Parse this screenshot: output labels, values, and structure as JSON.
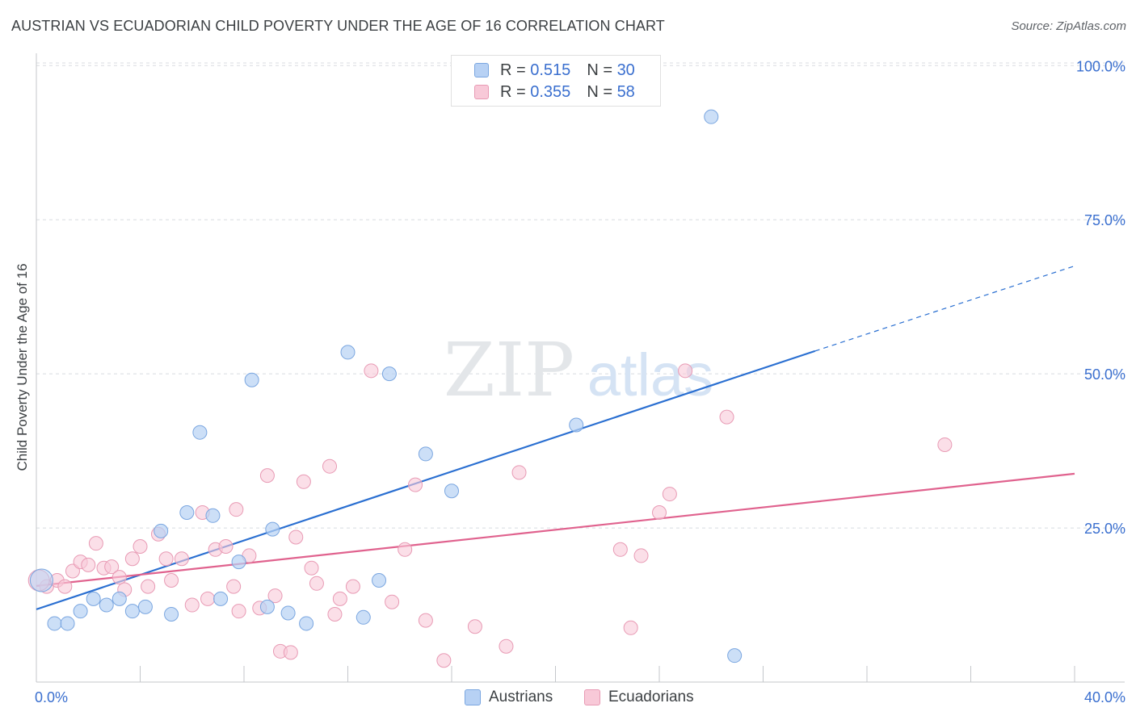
{
  "title": "AUSTRIAN VS ECUADORIAN CHILD POVERTY UNDER THE AGE OF 16 CORRELATION CHART",
  "source": "Source: ZipAtlas.com",
  "watermark": {
    "zip": "ZIP",
    "atlas": "atlas"
  },
  "legend": {
    "austrians": {
      "r_label": "R =",
      "r_value": "0.515",
      "n_label": "N =",
      "n_value": "30"
    },
    "ecuadorians": {
      "r_label": "R =",
      "r_value": "0.355",
      "n_label": "N =",
      "n_value": "58"
    }
  },
  "bottom_legend": {
    "austrians": "Austrians",
    "ecuadorians": "Ecuadorians"
  },
  "colors": {
    "austrians_fill": "#b7d1f4",
    "austrians_stroke": "#7aa6e0",
    "austrians_line": "#2a6fd1",
    "ecuadorians_fill": "#f8c9d8",
    "ecuadorians_stroke": "#e89ab4",
    "ecuadorians_line": "#e0628e",
    "axis_tick": "#3a6fcf",
    "grid": "#d8dce0"
  },
  "chart_data": {
    "type": "scatter",
    "title": "AUSTRIAN VS ECUADORIAN CHILD POVERTY UNDER THE AGE OF 16 CORRELATION CHART",
    "xlabel": "",
    "ylabel": "Child Poverty Under the Age of 16",
    "xlim": [
      0,
      40
    ],
    "ylim": [
      0,
      102
    ],
    "x_tick_labels": [
      "0.0%",
      "40.0%"
    ],
    "y_ticks": [
      25,
      50,
      75,
      100
    ],
    "y_tick_labels": [
      "25.0%",
      "50.0%",
      "75.0%",
      "100.0%"
    ],
    "grid": true,
    "legend_position": "top-center",
    "series": [
      {
        "name": "Austrians",
        "R": 0.515,
        "N": 30,
        "points": [
          [
            0.2,
            16.5
          ],
          [
            0.7,
            9.5
          ],
          [
            1.2,
            9.5
          ],
          [
            1.7,
            11.5
          ],
          [
            2.2,
            13.5
          ],
          [
            2.7,
            12.5
          ],
          [
            3.2,
            13.5
          ],
          [
            3.7,
            11.5
          ],
          [
            4.2,
            12.2
          ],
          [
            4.8,
            24.5
          ],
          [
            5.2,
            11.0
          ],
          [
            5.8,
            27.5
          ],
          [
            6.3,
            40.5
          ],
          [
            6.8,
            27.0
          ],
          [
            7.1,
            13.5
          ],
          [
            7.8,
            19.5
          ],
          [
            8.3,
            49.0
          ],
          [
            9.1,
            24.8
          ],
          [
            8.9,
            12.2
          ],
          [
            9.7,
            11.2
          ],
          [
            10.4,
            9.5
          ],
          [
            12.0,
            53.5
          ],
          [
            12.6,
            10.5
          ],
          [
            13.2,
            16.5
          ],
          [
            13.6,
            50.0
          ],
          [
            15.0,
            37.0
          ],
          [
            16.0,
            31.0
          ],
          [
            20.8,
            41.7
          ],
          [
            26.0,
            91.7
          ],
          [
            26.9,
            4.3
          ]
        ],
        "trend": {
          "x_start": 0,
          "y_start": 11.8,
          "x_end": 30.0,
          "y_end": 53.7,
          "dashed_to_x": 40.0,
          "dashed_to_y": 67.5
        }
      },
      {
        "name": "Ecuadorians",
        "R": 0.355,
        "N": 58,
        "points": [
          [
            0.4,
            15.5
          ],
          [
            0.8,
            16.5
          ],
          [
            1.1,
            15.5
          ],
          [
            1.4,
            18.0
          ],
          [
            1.7,
            19.5
          ],
          [
            2.0,
            19.0
          ],
          [
            2.3,
            22.5
          ],
          [
            2.6,
            18.5
          ],
          [
            2.9,
            18.7
          ],
          [
            3.2,
            17.0
          ],
          [
            3.4,
            15.0
          ],
          [
            3.7,
            20.0
          ],
          [
            4.0,
            22.0
          ],
          [
            4.3,
            15.5
          ],
          [
            4.7,
            24.0
          ],
          [
            5.0,
            20.0
          ],
          [
            5.2,
            16.5
          ],
          [
            5.6,
            20.0
          ],
          [
            6.0,
            12.5
          ],
          [
            6.4,
            27.5
          ],
          [
            6.6,
            13.5
          ],
          [
            6.9,
            21.5
          ],
          [
            7.3,
            22.0
          ],
          [
            7.6,
            15.5
          ],
          [
            7.7,
            28.0
          ],
          [
            7.8,
            11.5
          ],
          [
            8.2,
            20.5
          ],
          [
            8.6,
            12.0
          ],
          [
            8.9,
            33.5
          ],
          [
            9.2,
            14.0
          ],
          [
            9.4,
            5.0
          ],
          [
            9.8,
            4.8
          ],
          [
            10.0,
            23.5
          ],
          [
            10.3,
            32.5
          ],
          [
            10.6,
            18.5
          ],
          [
            10.8,
            16.0
          ],
          [
            11.3,
            35.0
          ],
          [
            11.5,
            11.0
          ],
          [
            11.7,
            13.5
          ],
          [
            12.2,
            15.5
          ],
          [
            12.9,
            50.5
          ],
          [
            13.7,
            13.0
          ],
          [
            14.2,
            21.5
          ],
          [
            14.6,
            32.0
          ],
          [
            15.0,
            10.0
          ],
          [
            15.7,
            3.5
          ],
          [
            16.9,
            9.0
          ],
          [
            18.1,
            5.8
          ],
          [
            18.6,
            34.0
          ],
          [
            22.5,
            21.5
          ],
          [
            22.9,
            8.8
          ],
          [
            23.3,
            20.5
          ],
          [
            24.0,
            27.5
          ],
          [
            24.4,
            30.5
          ],
          [
            25.0,
            50.5
          ],
          [
            26.6,
            43.0
          ],
          [
            35.0,
            38.5
          ],
          [
            0.1,
            16.5
          ]
        ],
        "trend": {
          "x_start": 0,
          "y_start": 15.6,
          "x_end": 40.0,
          "y_end": 33.8
        }
      }
    ]
  }
}
